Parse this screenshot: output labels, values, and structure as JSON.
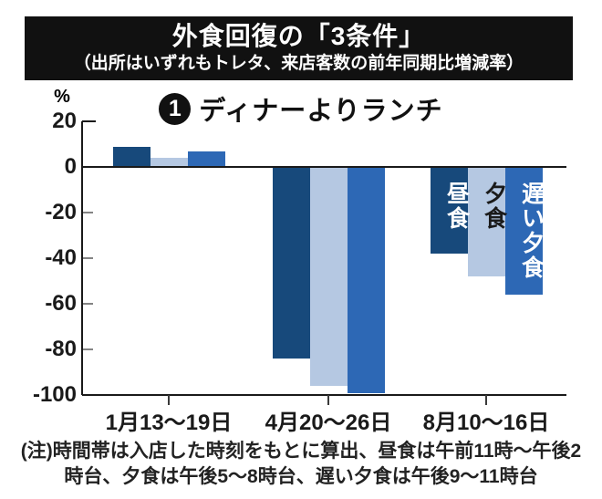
{
  "header": {
    "title": "外食回復の「3条件」",
    "subtitle": "（出所はいずれもトレタ、来店客数の前年同期比増減率）",
    "bg_color": "#111111",
    "text_color": "#ffffff"
  },
  "chart": {
    "badge_number": "1",
    "title": "ディナーよりランチ",
    "unit_label": "%",
    "note": "(注)時間帯は入店した時刻をもとに算出、昼食は午前11時～午後2時台、夕食は午後5～8時台、遅い夕食は午後9～11時台"
  },
  "chart_data": {
    "type": "bar",
    "title": "❶ ディナーよりランチ",
    "categories": [
      "1月13～19日",
      "4月20～26日",
      "8月10～16日"
    ],
    "series": [
      {
        "name": "昼食",
        "values": [
          9,
          -84,
          -38
        ],
        "color": "#17497b",
        "label_text_color": "#ffffff"
      },
      {
        "name": "夕食",
        "values": [
          4,
          -96,
          -48
        ],
        "color": "#b5c8e2",
        "label_text_color": "#1a1a1a"
      },
      {
        "name": "遅い夕食",
        "values": [
          7,
          -99,
          -56
        ],
        "color": "#2d68b5",
        "label_text_color": "#ffffff"
      }
    ],
    "xlabel": "",
    "ylabel": "%",
    "ylim": [
      -100,
      20
    ],
    "yticks": [
      20,
      0,
      -20,
      -40,
      -60,
      -80,
      -100
    ],
    "grid": false,
    "legend_position": "labels-on-bars-last-group",
    "axis_color": "#1a1a1a"
  }
}
